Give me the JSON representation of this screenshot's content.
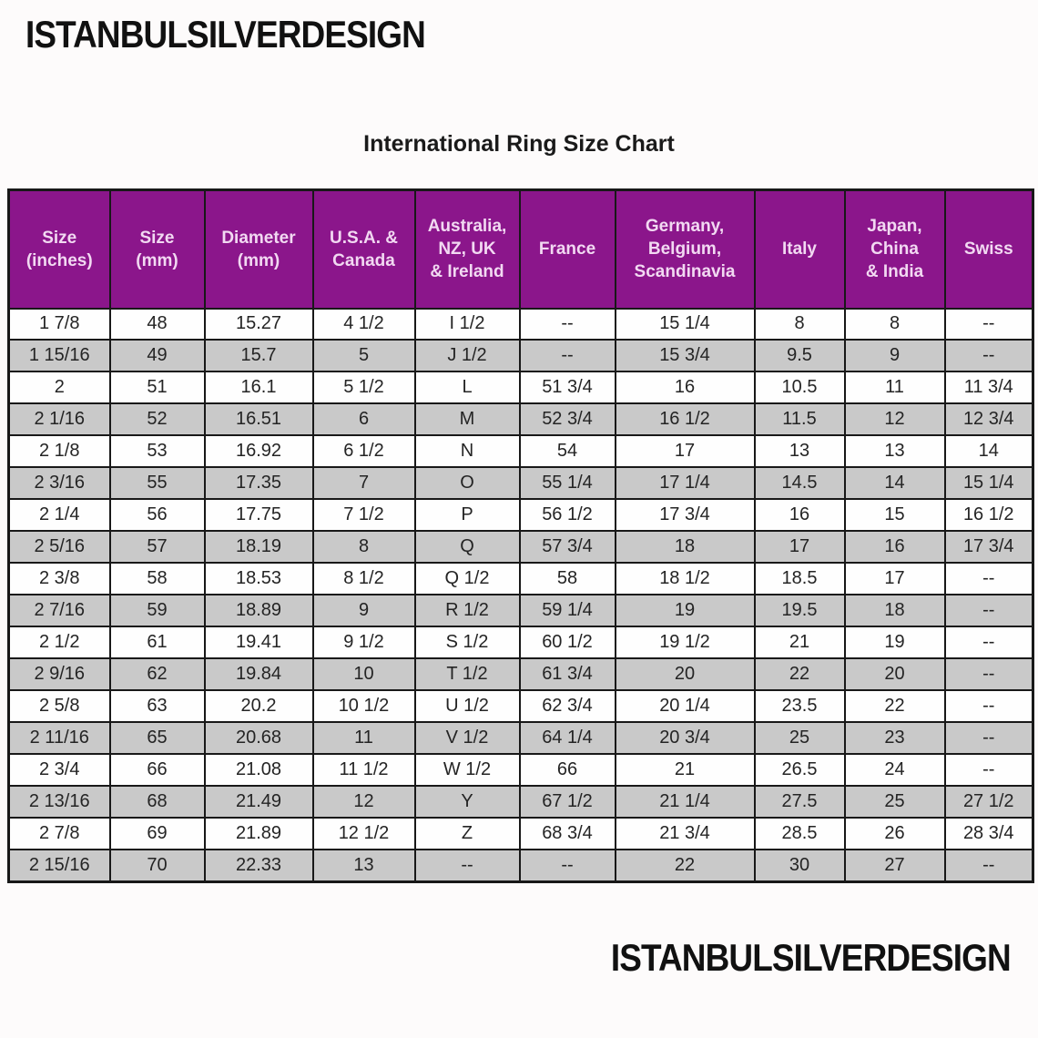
{
  "brand": {
    "top": "ISTANBULSILVERDESIGN",
    "bottom": "ISTANBULSILVERDESIGN"
  },
  "chart_data": {
    "type": "table",
    "title": "International Ring Size Chart",
    "columns": [
      "Size\n(inches)",
      "Size\n(mm)",
      "Diameter\n(mm)",
      "U.S.A. &\nCanada",
      "Australia,\nNZ, UK\n& Ireland",
      "France",
      "Germany,\nBelgium,\nScandinavia",
      "Italy",
      "Japan,\nChina\n& India",
      "Swiss"
    ],
    "rows": [
      [
        "1 7/8",
        "48",
        "15.27",
        "4 1/2",
        "I 1/2",
        "--",
        "15 1/4",
        "8",
        "8",
        "--"
      ],
      [
        "1 15/16",
        "49",
        "15.7",
        "5",
        "J 1/2",
        "--",
        "15 3/4",
        "9.5",
        "9",
        "--"
      ],
      [
        "2",
        "51",
        "16.1",
        "5 1/2",
        "L",
        "51 3/4",
        "16",
        "10.5",
        "11",
        "11 3/4"
      ],
      [
        "2 1/16",
        "52",
        "16.51",
        "6",
        "M",
        "52 3/4",
        "16 1/2",
        "11.5",
        "12",
        "12 3/4"
      ],
      [
        "2 1/8",
        "53",
        "16.92",
        "6 1/2",
        "N",
        "54",
        "17",
        "13",
        "13",
        "14"
      ],
      [
        "2 3/16",
        "55",
        "17.35",
        "7",
        "O",
        "55 1/4",
        "17 1/4",
        "14.5",
        "14",
        "15 1/4"
      ],
      [
        "2 1/4",
        "56",
        "17.75",
        "7 1/2",
        "P",
        "56 1/2",
        "17 3/4",
        "16",
        "15",
        "16 1/2"
      ],
      [
        "2 5/16",
        "57",
        "18.19",
        "8",
        "Q",
        "57 3/4",
        "18",
        "17",
        "16",
        "17 3/4"
      ],
      [
        "2 3/8",
        "58",
        "18.53",
        "8 1/2",
        "Q 1/2",
        "58",
        "18 1/2",
        "18.5",
        "17",
        "--"
      ],
      [
        "2 7/16",
        "59",
        "18.89",
        "9",
        "R 1/2",
        "59 1/4",
        "19",
        "19.5",
        "18",
        "--"
      ],
      [
        "2 1/2",
        "61",
        "19.41",
        "9 1/2",
        "S 1/2",
        "60 1/2",
        "19 1/2",
        "21",
        "19",
        "--"
      ],
      [
        "2 9/16",
        "62",
        "19.84",
        "10",
        "T 1/2",
        "61 3/4",
        "20",
        "22",
        "20",
        "--"
      ],
      [
        "2 5/8",
        "63",
        "20.2",
        "10 1/2",
        "U 1/2",
        "62 3/4",
        "20 1/4",
        "23.5",
        "22",
        "--"
      ],
      [
        "2 11/16",
        "65",
        "20.68",
        "11",
        "V 1/2",
        "64 1/4",
        "20 3/4",
        "25",
        "23",
        "--"
      ],
      [
        "2 3/4",
        "66",
        "21.08",
        "11 1/2",
        "W 1/2",
        "66",
        "21",
        "26.5",
        "24",
        "--"
      ],
      [
        "2 13/16",
        "68",
        "21.49",
        "12",
        "Y",
        "67 1/2",
        "21 1/4",
        "27.5",
        "25",
        "27 1/2"
      ],
      [
        "2 7/8",
        "69",
        "21.89",
        "12 1/2",
        "Z",
        "68 3/4",
        "21 3/4",
        "28.5",
        "26",
        "28 3/4"
      ],
      [
        "2 15/16",
        "70",
        "22.33",
        "13",
        "--",
        "--",
        "22",
        "30",
        "27",
        "--"
      ]
    ]
  },
  "colors": {
    "header_background": "#8b168b",
    "header_text": "#f2d9f2",
    "stripe_gray": "#c9c9c9",
    "border_black": "#181818",
    "page_background": "#fdfbfb"
  }
}
